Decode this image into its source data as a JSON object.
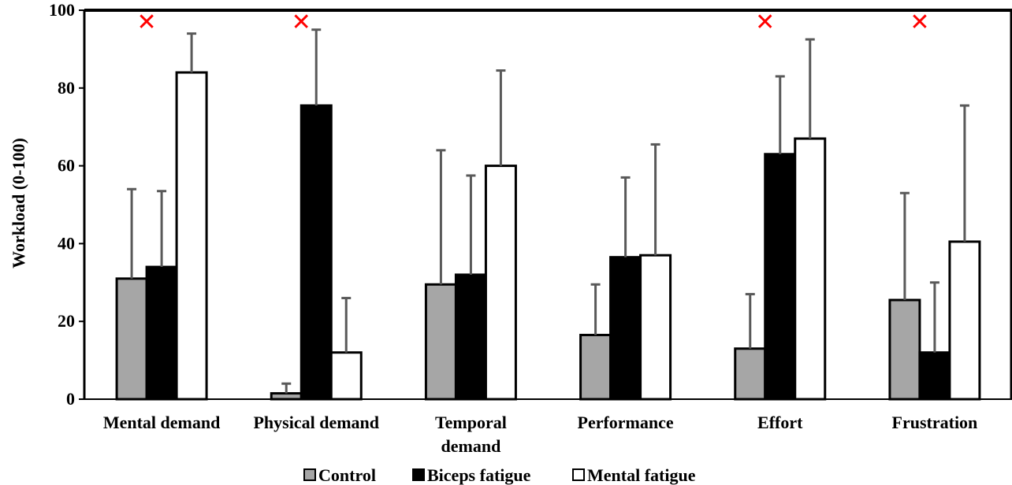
{
  "chart_data": {
    "type": "bar",
    "ylabel": "Workload (0-100)",
    "ylim": [
      0,
      100
    ],
    "yticks": [
      "0",
      "20",
      "40",
      "60",
      "80",
      "100"
    ],
    "categories": [
      "Mental demand",
      "Physical demand",
      "Temporal demand",
      "Performance",
      "Effort",
      "Frustration"
    ],
    "category_lines": [
      [
        "Mental demand"
      ],
      [
        "Physical demand"
      ],
      [
        "Temporal",
        "demand"
      ],
      [
        "Performance"
      ],
      [
        "Effort"
      ],
      [
        "Frustration"
      ]
    ],
    "series": [
      {
        "name": "Control",
        "color": "#a6a6a6",
        "values": [
          31,
          1.5,
          29.5,
          16.5,
          13,
          25.5
        ],
        "errors": [
          23,
          2.5,
          34.5,
          13,
          14,
          27.5
        ]
      },
      {
        "name": "Biceps fatigue",
        "color": "#000000",
        "values": [
          34,
          75.5,
          32,
          36.5,
          63,
          12
        ],
        "errors": [
          19.5,
          19.5,
          25.5,
          20.5,
          20,
          18
        ]
      },
      {
        "name": "Mental fatigue",
        "color": "#ffffff",
        "values": [
          84,
          12,
          60,
          37,
          67,
          40.5
        ],
        "errors": [
          10,
          14,
          24.5,
          28.5,
          25.5,
          35
        ]
      }
    ],
    "significance_marker": "✕",
    "significance_color": "#ff0000",
    "significant_categories": [
      "Mental demand",
      "Physical demand",
      "Effort",
      "Frustration"
    ],
    "grid": false,
    "legend_position": "bottom-center"
  }
}
